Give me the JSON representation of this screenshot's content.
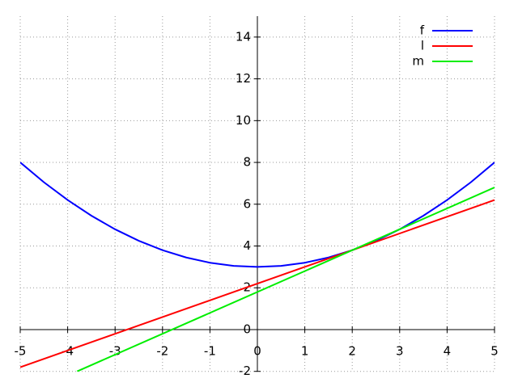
{
  "chart_data": {
    "type": "line",
    "series": [
      {
        "name": "f",
        "color": "#0000ff",
        "x": [
          -5,
          -4.5,
          -4,
          -3.5,
          -3,
          -2.5,
          -2,
          -1.5,
          -1,
          -0.5,
          0,
          0.5,
          1,
          1.5,
          2,
          2.5,
          3,
          3.5,
          4,
          4.5,
          5
        ],
        "values": [
          8,
          7.05,
          6.2,
          5.45,
          4.8,
          4.25,
          3.8,
          3.45,
          3.2,
          3.05,
          3,
          3.05,
          3.2,
          3.45,
          3.8,
          4.25,
          4.8,
          5.45,
          6.2,
          7.05,
          8
        ]
      },
      {
        "name": "l",
        "color": "#ff0000",
        "x": [
          -5,
          5
        ],
        "values": [
          -1.8,
          6.2
        ]
      },
      {
        "name": "m",
        "color": "#00ee00",
        "x": [
          -3.8,
          5
        ],
        "values": [
          -2,
          6.8
        ]
      }
    ],
    "xlim": [
      -5,
      5
    ],
    "xticks": [
      -5,
      -4,
      -3,
      -2,
      -1,
      0,
      1,
      2,
      3,
      4,
      5
    ],
    "ylim": [
      -2,
      15
    ],
    "yticks": [
      -2,
      0,
      2,
      4,
      6,
      8,
      10,
      12,
      14
    ],
    "grid": true,
    "legend": "top-right"
  }
}
